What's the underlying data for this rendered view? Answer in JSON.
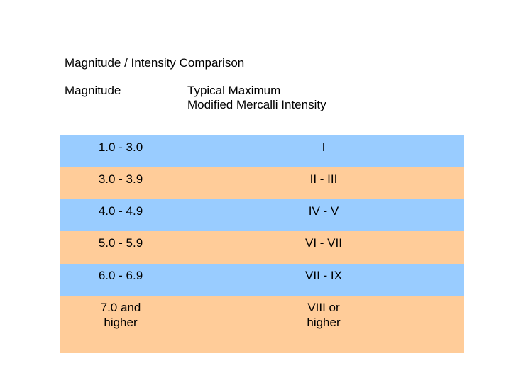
{
  "title": "Magnitude / Intensity Comparison",
  "columns": {
    "magnitude": "Magnitude",
    "intensity": "Typical Maximum\nModified Mercalli Intensity"
  },
  "colors": {
    "blue_row": "#99ccff",
    "orange_row": "#ffcc99"
  },
  "rows": [
    {
      "magnitude": "1.0 - 3.0",
      "intensity": "I",
      "color": "blue"
    },
    {
      "magnitude": "3.0 - 3.9",
      "intensity": "II - III",
      "color": "orange"
    },
    {
      "magnitude": "4.0 - 4.9",
      "intensity": "IV - V",
      "color": "blue"
    },
    {
      "magnitude": "5.0 - 5.9",
      "intensity": "VI - VII",
      "color": "orange"
    },
    {
      "magnitude": "6.0 - 6.9",
      "intensity": "VII - IX",
      "color": "blue"
    },
    {
      "magnitude": "7.0 and\nhigher",
      "intensity": "VIII or\nhigher",
      "color": "orange"
    }
  ]
}
